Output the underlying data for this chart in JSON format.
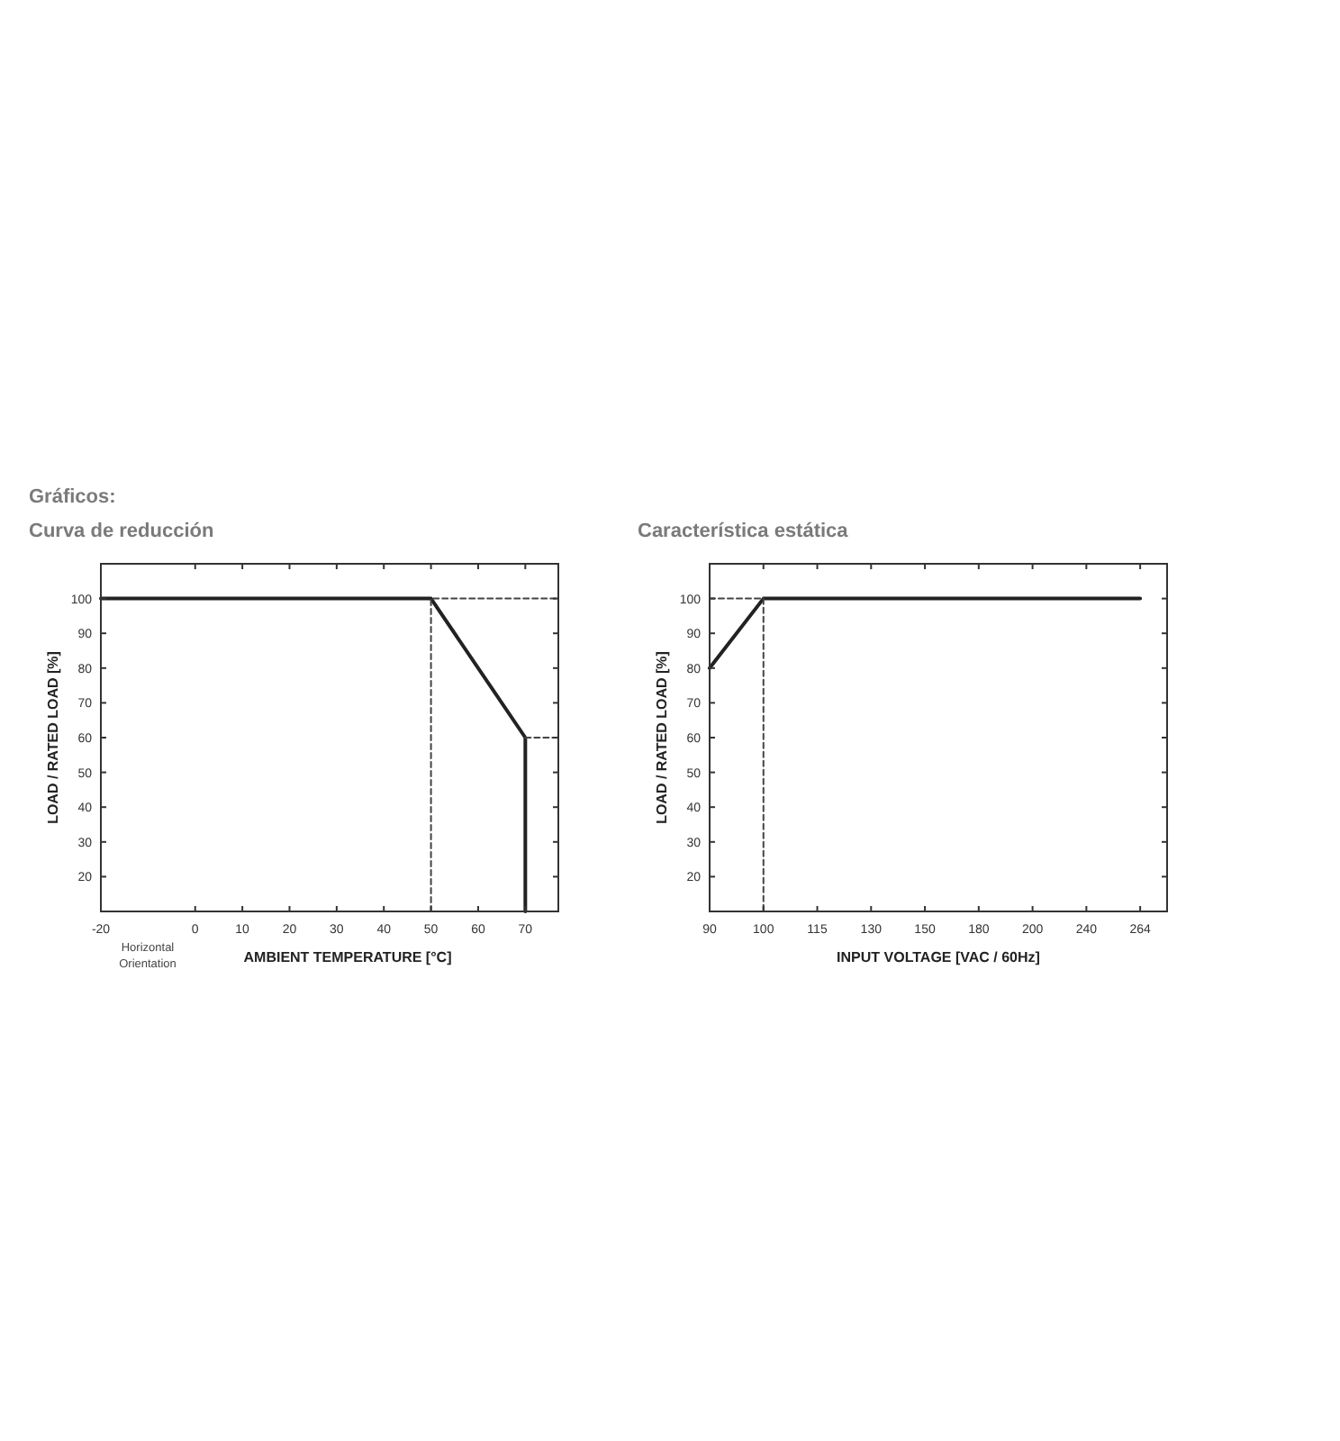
{
  "chart_data": [
    {
      "type": "line",
      "title": "Gráficos:",
      "subtitle": "Curva de reducción",
      "xlabel": "AMBIENT TEMPERATURE [°C]",
      "ylabel": "LOAD / RATED LOAD [%]",
      "xlim": [
        -20,
        77
      ],
      "xticks": [
        -20,
        0,
        10,
        20,
        30,
        40,
        50,
        60,
        70
      ],
      "ylim": [
        10,
        110
      ],
      "yticks": [
        20,
        30,
        40,
        50,
        60,
        70,
        80,
        90,
        100
      ],
      "grid": false,
      "annotations": [
        "Horizontal Orientation"
      ],
      "series": [
        {
          "x": [
            -20,
            50,
            70,
            70
          ],
          "values": [
            100,
            100,
            60,
            10
          ],
          "color": "#222222",
          "line_style": "solid"
        },
        {
          "x": [
            50,
            50,
            77
          ],
          "values": [
            10,
            100,
            100
          ],
          "color": "#444444",
          "line_style": "dashed"
        },
        {
          "x": [
            70,
            77
          ],
          "values": [
            60,
            60
          ],
          "color": "#444444",
          "line_style": "dashed"
        }
      ]
    },
    {
      "type": "line",
      "title": "Característica estática",
      "xlabel": "INPUT VOLTAGE [VAC / 60Hz]",
      "ylabel": "LOAD / RATED LOAD [%]",
      "categories": [
        "90",
        "100",
        "115",
        "130",
        "150",
        "180",
        "200",
        "240",
        "264"
      ],
      "ylim": [
        10,
        110
      ],
      "yticks": [
        20,
        30,
        40,
        50,
        60,
        70,
        80,
        90,
        100
      ],
      "grid": false,
      "series": [
        {
          "values": [
            80,
            100,
            100,
            100,
            100,
            100,
            100,
            100,
            100
          ],
          "color": "#222222",
          "line_style": "solid"
        },
        {
          "x": [
            "90",
            "100",
            "100"
          ],
          "values": [
            100,
            100,
            10
          ],
          "color": "#444444",
          "line_style": "dashed"
        }
      ]
    }
  ]
}
